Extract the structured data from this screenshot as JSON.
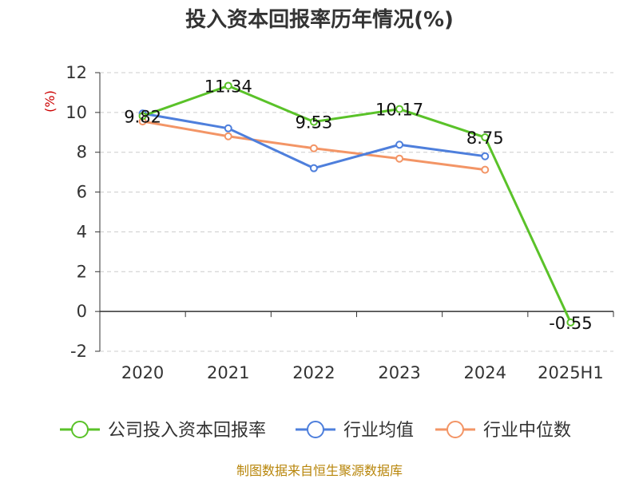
{
  "chart_data": {
    "type": "line",
    "title": "投入资本回报率历年情况(%)",
    "ylabel": "(%)",
    "xlabel": "",
    "categories": [
      "2020",
      "2021",
      "2022",
      "2023",
      "2024",
      "2025H1"
    ],
    "ylim": [
      -2,
      12
    ],
    "yticks": [
      -2,
      0,
      2,
      4,
      6,
      8,
      10,
      12
    ],
    "grid": true,
    "legend_position": "bottom",
    "series": [
      {
        "name": "公司投入资本回报率",
        "values": [
          9.82,
          11.34,
          9.53,
          10.17,
          8.75,
          -0.55
        ],
        "labels": [
          "9.82",
          "11.34",
          "9.53",
          "10.17",
          "8.75",
          "-0.55"
        ],
        "color": "#5ac229"
      },
      {
        "name": "行业均值",
        "values": [
          9.95,
          9.2,
          7.2,
          8.38,
          7.8,
          null
        ],
        "color": "#4e7fdc"
      },
      {
        "name": "行业中位数",
        "values": [
          9.55,
          8.8,
          8.2,
          7.68,
          7.12,
          null
        ],
        "color": "#f39566"
      }
    ]
  },
  "source": "制图数据来自恒生聚源数据库"
}
